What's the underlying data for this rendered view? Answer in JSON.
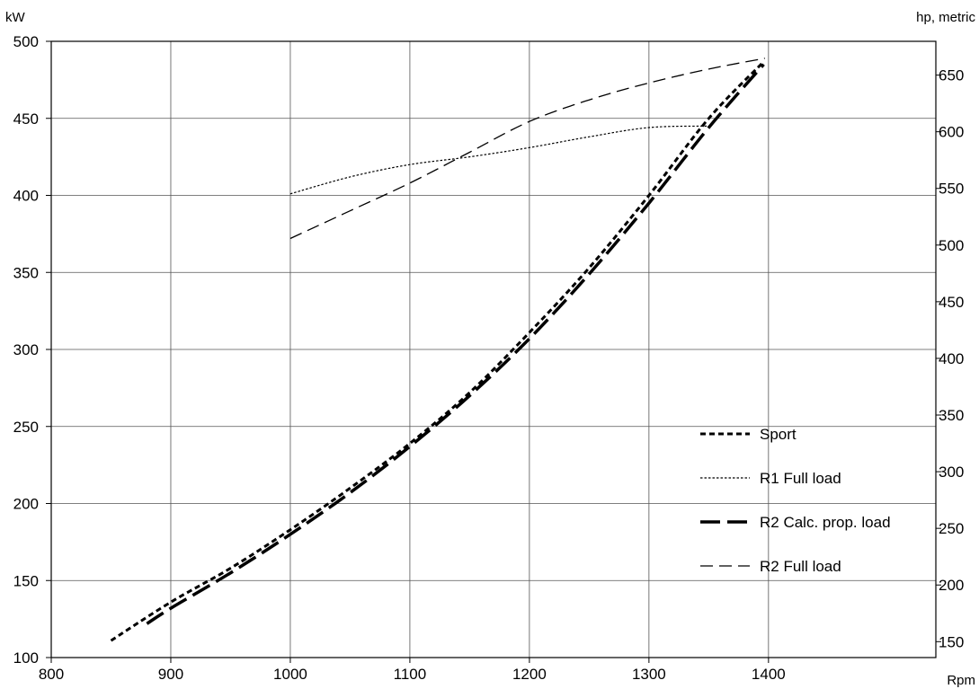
{
  "chart_data": {
    "type": "line",
    "title": "",
    "xlabel": "Rpm",
    "ylabel_left": "kW",
    "ylabel_right": "hp, metric",
    "xlim": [
      800,
      1540
    ],
    "ylim": [
      100,
      500
    ],
    "xticks": [
      800,
      900,
      1000,
      1100,
      1200,
      1300,
      1400
    ],
    "yticks_left": [
      100,
      150,
      200,
      250,
      300,
      350,
      400,
      450,
      500
    ],
    "yticks_right": [
      150,
      200,
      250,
      300,
      350,
      400,
      450,
      500,
      550,
      600,
      650
    ],
    "grid": true,
    "legend_position": "bottom-right",
    "series": [
      {
        "name": "Sport",
        "style": "dashed-short-thick",
        "color": "#000000",
        "x": [
          850,
          900,
          950,
          1000,
          1050,
          1100,
          1150,
          1200,
          1250,
          1300,
          1350,
          1395
        ],
        "y": [
          111,
          136,
          158,
          183,
          210,
          239,
          272,
          311,
          353,
          400,
          450,
          486
        ]
      },
      {
        "name": "R1 Full load",
        "style": "dotted-thin",
        "color": "#000000",
        "x": [
          1000,
          1050,
          1100,
          1150,
          1200,
          1250,
          1300,
          1350
        ],
        "y": [
          401,
          412,
          420,
          425,
          431,
          438,
          444,
          445
        ]
      },
      {
        "name": "R2 Calc. prop. load",
        "style": "dashed-long-thick",
        "color": "#000000",
        "x": [
          880,
          900,
          950,
          1000,
          1050,
          1100,
          1150,
          1200,
          1250,
          1300,
          1350,
          1396
        ],
        "y": [
          122,
          132,
          155,
          180,
          207,
          237,
          270,
          307,
          349,
          395,
          444,
          485
        ]
      },
      {
        "name": "R2 Full load",
        "style": "dashed-long-thin",
        "color": "#000000",
        "x": [
          1000,
          1050,
          1100,
          1150,
          1200,
          1250,
          1300,
          1350,
          1397
        ],
        "y": [
          372,
          390,
          408,
          428,
          448,
          462,
          473,
          482,
          489
        ]
      }
    ]
  }
}
